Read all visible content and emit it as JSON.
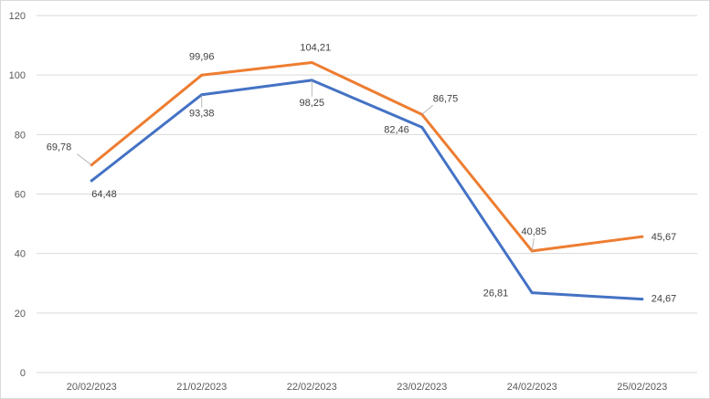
{
  "chart_data": {
    "type": "line",
    "title": "",
    "xlabel": "",
    "ylabel": "",
    "categories": [
      "20/02/2023",
      "21/02/2023",
      "22/02/2023",
      "23/02/2023",
      "24/02/2023",
      "25/02/2023"
    ],
    "ylim": [
      0,
      120
    ],
    "yticks": [
      "0",
      "20",
      "40",
      "60",
      "80",
      "100",
      "120"
    ],
    "grid": true,
    "legend": "none",
    "series": [
      {
        "color": "#4472C4",
        "values": [
          64.48,
          93.38,
          98.25,
          82.46,
          26.81,
          24.67
        ],
        "labels": [
          "64,48",
          "93,38",
          "98,25",
          "82,46",
          "26,81",
          "24,67"
        ]
      },
      {
        "color": "#ED7D31",
        "values": [
          69.78,
          99.96,
          104.21,
          86.75,
          40.85,
          45.67
        ],
        "labels": [
          "69,78",
          "99,96",
          "104,21",
          "86,75",
          "40,85",
          "45,67"
        ]
      }
    ]
  }
}
